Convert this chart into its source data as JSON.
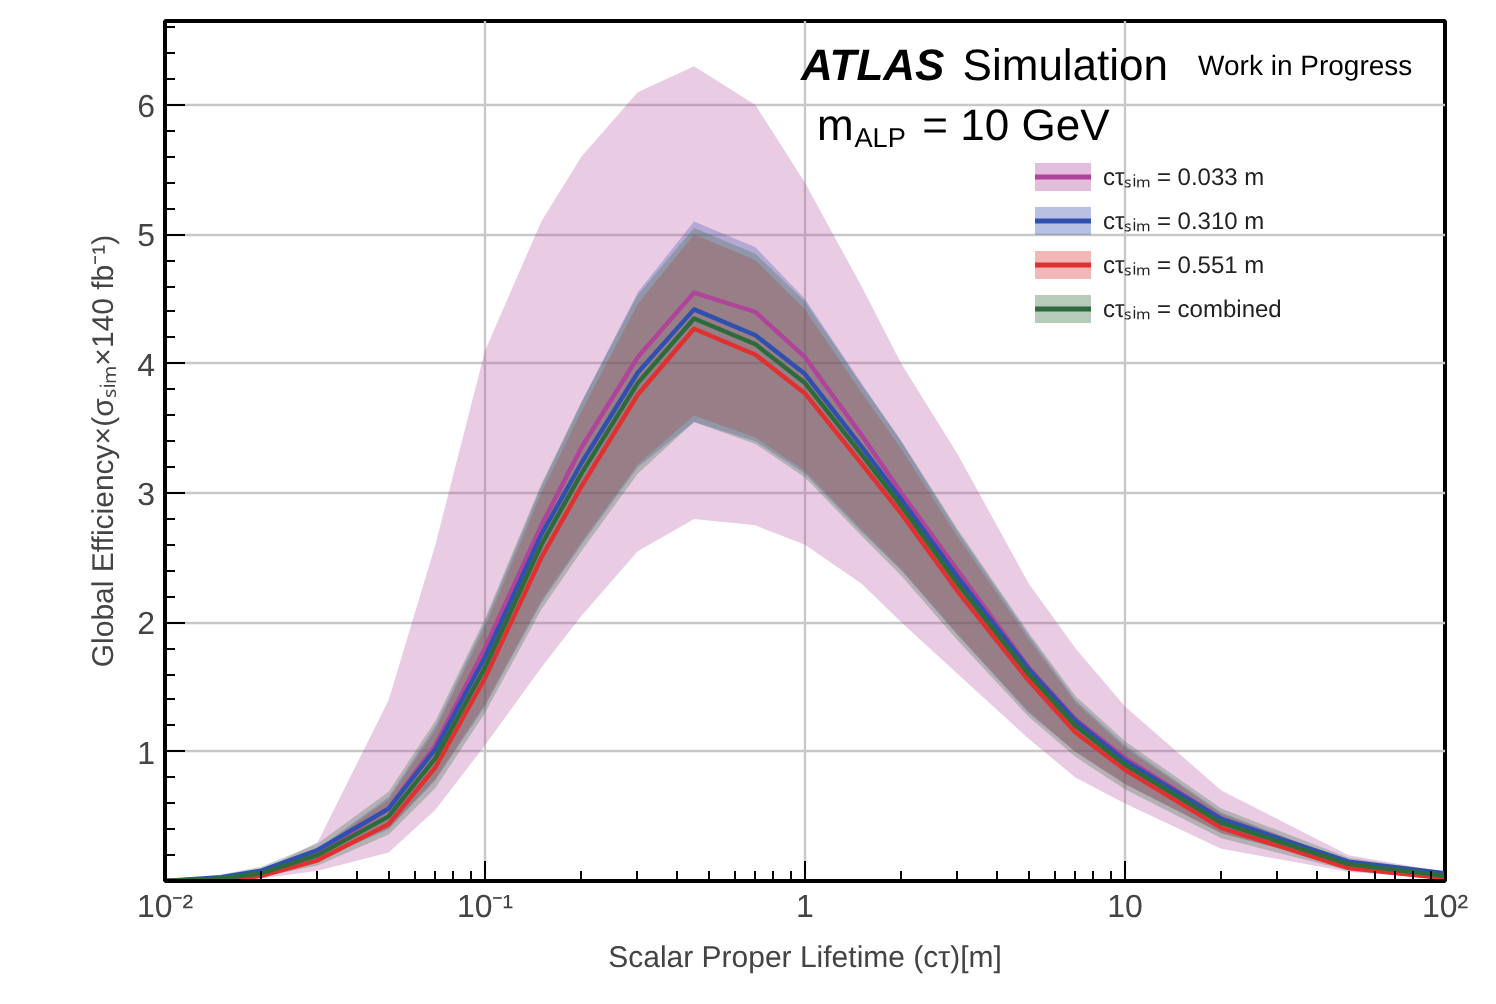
{
  "chart_data": {
    "type": "line",
    "xlabel": "Scalar Proper Lifetime (cτ)[m]",
    "ylabel": "Global Efficiency×(σₛᵢₘ×140 fb⁻¹)",
    "annotations": [
      "ATLAS",
      "Simulation",
      "Work in Progress",
      "m$_{ALP}$ = 10 GeV"
    ],
    "log": "x",
    "xlim": [
      0.01,
      100
    ],
    "ylim": [
      0,
      6.65
    ],
    "xticks": [
      {
        "value": 0.01,
        "label": "10⁻²"
      },
      {
        "value": 0.1,
        "label": "10⁻¹"
      },
      1,
      10,
      {
        "value": 100,
        "label": "10²"
      }
    ],
    "yticks": [
      1,
      2,
      3,
      4,
      5,
      6
    ],
    "grid": true,
    "legend": "top right",
    "line_style": "solid",
    "marker": "none",
    "x": [
      0.01,
      0.015,
      0.02,
      0.03,
      0.05,
      0.07,
      0.1,
      0.15,
      0.2,
      0.3,
      0.45,
      0.7,
      1,
      1.5,
      2,
      3,
      5,
      7,
      10,
      20,
      50,
      100
    ],
    "series": [
      {
        "name": "cτₛᵢₘ = 0.033 m",
        "color": "#b0439a",
        "values": [
          0.0,
          0.02,
          0.07,
          0.22,
          0.56,
          1.05,
          1.8,
          2.75,
          3.35,
          4.05,
          4.55,
          4.4,
          4.05,
          3.45,
          3.0,
          2.4,
          1.65,
          1.25,
          0.95,
          0.48,
          0.14,
          0.05
        ],
        "lower": [
          0.0,
          0.0,
          0.02,
          0.08,
          0.22,
          0.55,
          1.05,
          1.65,
          2.05,
          2.55,
          2.8,
          2.75,
          2.6,
          2.3,
          2.0,
          1.6,
          1.1,
          0.8,
          0.6,
          0.25,
          0.07,
          0.02
        ],
        "upper": [
          0.0,
          0.03,
          0.08,
          0.3,
          1.4,
          2.6,
          4.1,
          5.1,
          5.6,
          6.1,
          6.3,
          6.0,
          5.4,
          4.6,
          4.0,
          3.3,
          2.3,
          1.8,
          1.35,
          0.7,
          0.2,
          0.07
        ]
      },
      {
        "name": "cτₛᵢₘ = 0.310 m",
        "color": "#3050b0",
        "values": [
          0.0,
          0.03,
          0.08,
          0.24,
          0.56,
          1.02,
          1.73,
          2.68,
          3.23,
          3.93,
          4.42,
          4.22,
          3.92,
          3.36,
          2.95,
          2.35,
          1.64,
          1.24,
          0.93,
          0.48,
          0.15,
          0.06
        ],
        "lower": [
          0.0,
          0.01,
          0.05,
          0.16,
          0.4,
          0.78,
          1.35,
          2.15,
          2.6,
          3.2,
          3.55,
          3.4,
          3.15,
          2.7,
          2.4,
          1.9,
          1.3,
          1.0,
          0.75,
          0.37,
          0.11,
          0.03
        ],
        "upper": [
          0.0,
          0.03,
          0.08,
          0.25,
          0.65,
          1.2,
          2.0,
          3.05,
          3.7,
          4.55,
          5.1,
          4.9,
          4.5,
          3.85,
          3.4,
          2.7,
          1.9,
          1.4,
          1.05,
          0.53,
          0.15,
          0.05
        ]
      },
      {
        "name": "cτₛᵢₘ = 0.551 m",
        "color": "#e03030",
        "values": [
          0.0,
          0.0,
          0.04,
          0.16,
          0.44,
          0.88,
          1.57,
          2.5,
          3.05,
          3.76,
          4.27,
          4.07,
          3.77,
          3.23,
          2.84,
          2.24,
          1.55,
          1.15,
          0.86,
          0.41,
          0.1,
          0.02
        ],
        "lower": [
          0.0,
          0.01,
          0.05,
          0.16,
          0.41,
          0.79,
          1.37,
          2.17,
          2.62,
          3.22,
          3.6,
          3.43,
          3.17,
          2.72,
          2.41,
          1.91,
          1.31,
          1.0,
          0.75,
          0.37,
          0.11,
          0.03
        ],
        "upper": [
          0.0,
          0.03,
          0.08,
          0.24,
          0.63,
          1.17,
          1.96,
          3.0,
          3.63,
          4.46,
          5.0,
          4.8,
          4.42,
          3.78,
          3.34,
          2.66,
          1.87,
          1.38,
          1.03,
          0.52,
          0.15,
          0.05
        ]
      },
      {
        "name": "cτₛᵢₘ = combined",
        "color": "#2e6b3a",
        "values": [
          0.0,
          0.02,
          0.06,
          0.2,
          0.5,
          0.95,
          1.65,
          2.6,
          3.15,
          3.85,
          4.35,
          4.15,
          3.85,
          3.3,
          2.9,
          2.3,
          1.6,
          1.2,
          0.9,
          0.45,
          0.13,
          0.04
        ],
        "lower": [
          0.0,
          0.0,
          0.03,
          0.12,
          0.36,
          0.72,
          1.3,
          2.1,
          2.55,
          3.15,
          3.55,
          3.38,
          3.12,
          2.67,
          2.36,
          1.86,
          1.27,
          0.96,
          0.71,
          0.33,
          0.08,
          0.01
        ],
        "upper": [
          0.0,
          0.05,
          0.11,
          0.29,
          0.69,
          1.24,
          2.03,
          3.07,
          3.7,
          4.53,
          5.05,
          4.85,
          4.48,
          3.84,
          3.4,
          2.72,
          1.92,
          1.43,
          1.08,
          0.56,
          0.18,
          0.07
        ]
      }
    ]
  }
}
